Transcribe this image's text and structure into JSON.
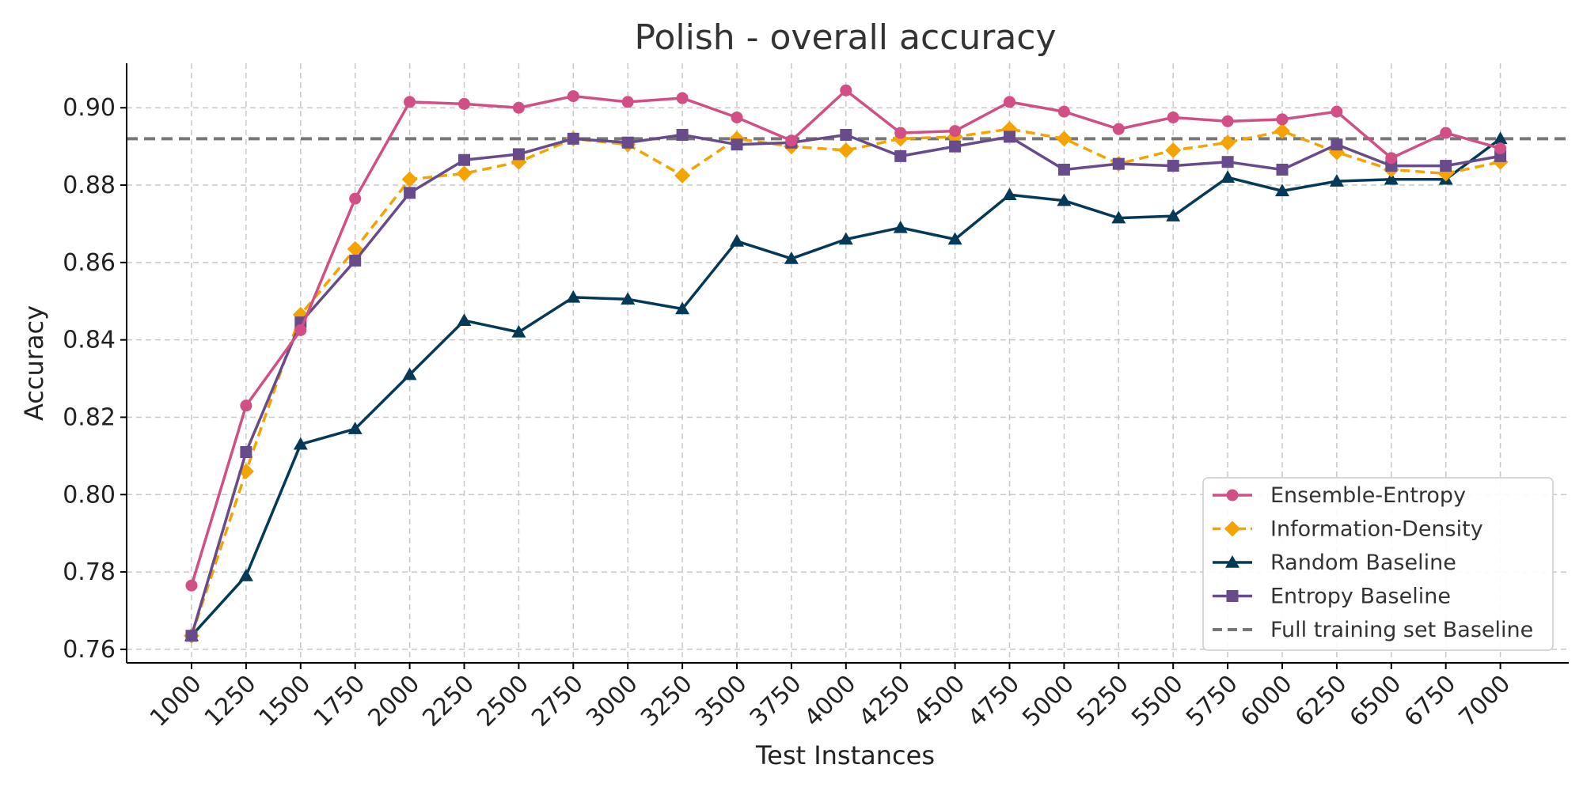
{
  "chart_data": {
    "type": "line",
    "title": "Polish - overall accuracy",
    "xlabel": "Test Instances",
    "ylabel": "Accuracy",
    "x": [
      1000,
      1250,
      1500,
      1750,
      2000,
      2250,
      2500,
      2750,
      3000,
      3250,
      3500,
      3750,
      4000,
      4250,
      4500,
      4750,
      5000,
      5250,
      5500,
      5750,
      6000,
      6250,
      6500,
      6750,
      7000
    ],
    "x_tick_labels": [
      "1000",
      "1250",
      "1500",
      "1750",
      "2000",
      "2250",
      "2500",
      "2750",
      "3000",
      "3250",
      "3500",
      "3750",
      "4000",
      "4250",
      "4500",
      "4750",
      "5000",
      "5250",
      "5500",
      "5750",
      "6000",
      "6250",
      "6500",
      "6750",
      "7000"
    ],
    "y_ticks": [
      0.76,
      0.78,
      0.8,
      0.82,
      0.84,
      0.86,
      0.88,
      0.9
    ],
    "y_tick_labels": [
      "0.76",
      "0.78",
      "0.80",
      "0.82",
      "0.84",
      "0.86",
      "0.88",
      "0.90"
    ],
    "ylim": [
      0.7565,
      0.9115
    ],
    "grid": true,
    "legend_position": "bottom-right",
    "series": [
      {
        "name": "Ensemble-Entropy",
        "color": "#d14f85",
        "marker": "circle",
        "dash": "solid",
        "values": [
          0.7765,
          0.823,
          0.8425,
          0.8765,
          0.9015,
          0.901,
          0.9,
          0.903,
          0.9015,
          0.9025,
          0.8975,
          0.8915,
          0.9045,
          0.8935,
          0.894,
          0.9015,
          0.899,
          0.8945,
          0.8975,
          0.8965,
          0.897,
          0.899,
          0.887,
          0.8935,
          0.8895
        ]
      },
      {
        "name": "Information-Density",
        "color": "#f5a300",
        "marker": "diamond",
        "dash": "dashed",
        "values": [
          0.7635,
          0.806,
          0.8465,
          0.8635,
          0.8815,
          0.883,
          0.886,
          0.892,
          0.8905,
          0.8825,
          0.892,
          0.89,
          0.889,
          0.892,
          0.8925,
          0.8945,
          0.892,
          0.8855,
          0.889,
          0.891,
          0.894,
          0.8885,
          0.884,
          0.883,
          0.886
        ]
      },
      {
        "name": "Random Baseline",
        "color": "#043a57",
        "marker": "triangle",
        "dash": "solid",
        "values": [
          0.7635,
          0.779,
          0.813,
          0.817,
          0.831,
          0.845,
          0.842,
          0.851,
          0.8505,
          0.848,
          0.8655,
          0.861,
          0.866,
          0.869,
          0.866,
          0.8775,
          0.876,
          0.8715,
          0.872,
          0.882,
          0.8785,
          0.881,
          0.8815,
          0.8815,
          0.892
        ]
      },
      {
        "name": "Entropy Baseline",
        "color": "#674b8b",
        "marker": "square",
        "dash": "solid",
        "values": [
          0.7635,
          0.811,
          0.8445,
          0.8605,
          0.878,
          0.8865,
          0.888,
          0.892,
          0.891,
          0.893,
          0.8905,
          0.891,
          0.893,
          0.8875,
          0.89,
          0.8925,
          0.884,
          0.8855,
          0.885,
          0.886,
          0.884,
          0.8905,
          0.885,
          0.885,
          0.8875
        ]
      }
    ],
    "reference_line": {
      "name": "Full training set Baseline",
      "color": "#777777",
      "dash": "dashed",
      "value": 0.892
    }
  }
}
